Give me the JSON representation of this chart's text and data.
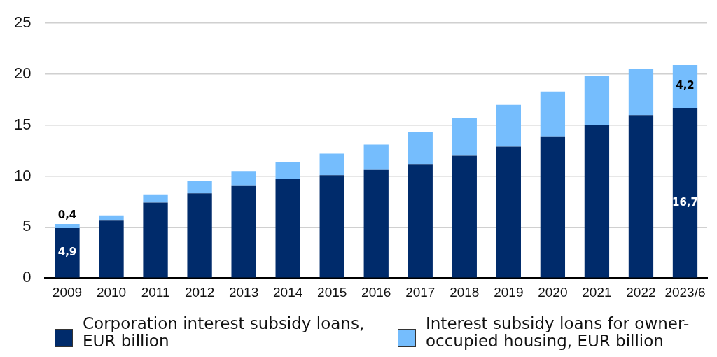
{
  "chart_data": {
    "type": "bar",
    "stacked": true,
    "categories": [
      "2009",
      "2010",
      "2011",
      "2012",
      "2013",
      "2014",
      "2015",
      "2016",
      "2017",
      "2018",
      "2019",
      "2020",
      "2021",
      "2022",
      "2023/6"
    ],
    "series": [
      {
        "name": "Corporation interest subsidy loans, EUR billion",
        "color": "#002b6b",
        "values": [
          4.9,
          5.7,
          7.4,
          8.3,
          9.1,
          9.7,
          10.1,
          10.6,
          11.2,
          12.0,
          12.9,
          13.9,
          15.0,
          16.0,
          16.7
        ],
        "value_labels": [
          "4,9",
          null,
          null,
          null,
          null,
          null,
          null,
          null,
          null,
          null,
          null,
          null,
          null,
          null,
          "16,7"
        ]
      },
      {
        "name": "Interest subsidy loans for owner-occupied housing, EUR billion",
        "color": "#75bdfd",
        "values": [
          0.4,
          0.45,
          0.8,
          1.2,
          1.4,
          1.7,
          2.1,
          2.5,
          3.1,
          3.7,
          4.1,
          4.4,
          4.8,
          4.5,
          4.2
        ],
        "value_labels": [
          "0,4",
          null,
          null,
          null,
          null,
          null,
          null,
          null,
          null,
          null,
          null,
          null,
          null,
          null,
          "4,2"
        ]
      }
    ],
    "ylim": [
      0,
      25
    ],
    "yticks": [
      0,
      5,
      10,
      15,
      20,
      25
    ],
    "grid": "y",
    "legend": "bottom"
  }
}
